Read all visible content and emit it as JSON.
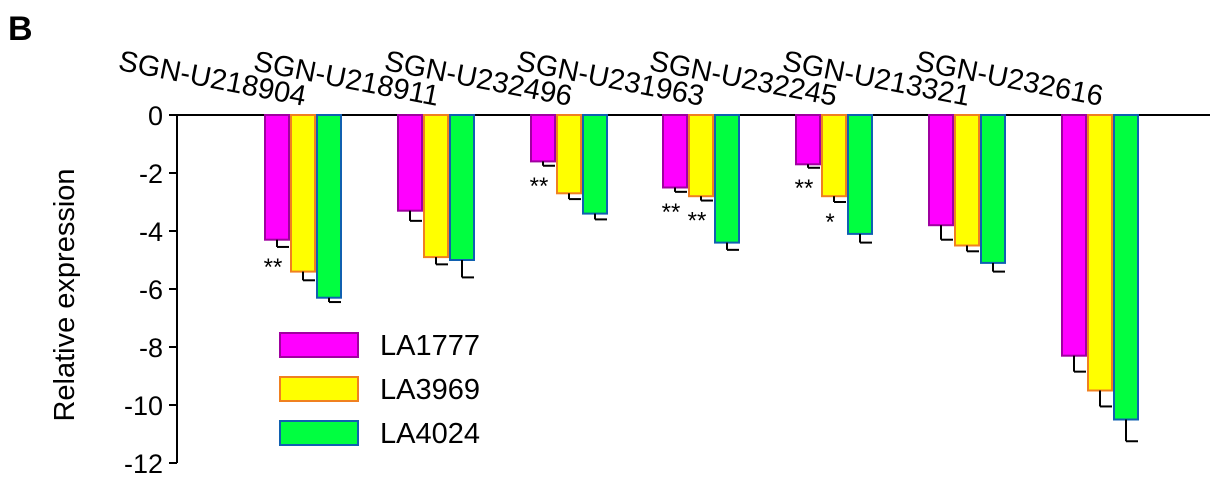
{
  "panel_label": "B",
  "colors": {
    "LA1777_fill": "#ff00ff",
    "LA1777_stroke": "#a000a0",
    "LA3969_fill": "#ffff00",
    "LA3969_stroke": "#f08020",
    "LA4024_fill": "#00ff40",
    "LA4024_stroke": "#1060b0",
    "axis": "#000000"
  },
  "chart_data": {
    "type": "bar",
    "title": "",
    "xlabel": "",
    "ylabel": "Relative expression",
    "ylim": [
      -12,
      0
    ],
    "yticks": [
      0,
      -2,
      -4,
      -6,
      -8,
      -10,
      -12
    ],
    "ytick_labels": [
      "0",
      "-2",
      "-4",
      "-6",
      "-8",
      "-10",
      "-12"
    ],
    "categories": [
      "SGN-U218904",
      "SGN-U218911",
      "SGN-U232496",
      "SGN-U231963",
      "SGN-U232245",
      "SGN-U213321",
      "SGN-U232616"
    ],
    "series": [
      {
        "name": "LA1777",
        "values": [
          -4.3,
          -3.3,
          -1.6,
          -2.5,
          -1.7,
          -3.8,
          -8.3
        ],
        "errors": [
          0.25,
          0.35,
          0.15,
          0.15,
          0.12,
          0.5,
          0.55
        ]
      },
      {
        "name": "LA3969",
        "values": [
          -5.4,
          -4.9,
          -2.7,
          -2.8,
          -2.8,
          -4.5,
          -9.5
        ],
        "errors": [
          0.3,
          0.25,
          0.2,
          0.15,
          0.2,
          0.2,
          0.55
        ]
      },
      {
        "name": "LA4024",
        "values": [
          -6.3,
          -5.0,
          -3.4,
          -4.4,
          -4.1,
          -5.1,
          -10.5
        ],
        "errors": [
          0.15,
          0.6,
          0.2,
          0.25,
          0.3,
          0.3,
          0.75
        ]
      }
    ],
    "significance": [
      {
        "category_index": 0,
        "series_index": 0,
        "text": "**"
      },
      {
        "category_index": 2,
        "series_index": 0,
        "text": "**"
      },
      {
        "category_index": 3,
        "series_index": 0,
        "text": "**"
      },
      {
        "category_index": 3,
        "series_index": 1,
        "text": "**"
      },
      {
        "category_index": 4,
        "series_index": 0,
        "text": "**"
      },
      {
        "category_index": 4,
        "series_index": 1,
        "text": "*"
      }
    ],
    "legend_position": "bottom-left",
    "grid": false
  }
}
